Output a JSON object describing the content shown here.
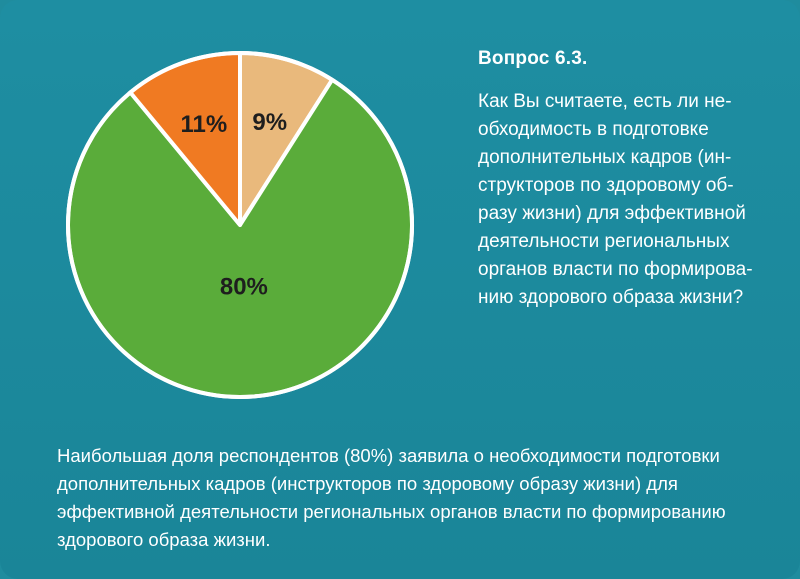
{
  "question": {
    "title": "Вопрос 6.3.",
    "lines": [
      "Как Вы считаете, есть ли не-",
      "обходимость в подготовке",
      "дополнительных кадров (ин-",
      "структоров по здоровому об-",
      "разу жизни) для эффективной",
      "деятельности региональных",
      "органов власти по формирова-",
      "нию здорового образа жизни?"
    ]
  },
  "conclusion": {
    "lines": [
      "Наибольшая доля респондентов (80%) заявила о необходимости подготовки",
      "дополнительных кадров (инструкторов по здоровому образу жизни) для",
      "эффективной деятельности региональных органов власти по формированию",
      "здорового образа жизни."
    ]
  },
  "chart_data": {
    "type": "pie",
    "slices": [
      {
        "label": "9%",
        "value": 9,
        "color": "#e9b97c"
      },
      {
        "label": "80%",
        "value": 80,
        "color": "#5aac3a"
      },
      {
        "label": "11%",
        "value": 11,
        "color": "#f07a22"
      }
    ],
    "start_angle_deg": 0,
    "direction": "clockwise",
    "legend": "none"
  },
  "colors": {
    "background": "#1f8c9e",
    "text": "#ffffff",
    "slice_border": "#ffffff"
  }
}
